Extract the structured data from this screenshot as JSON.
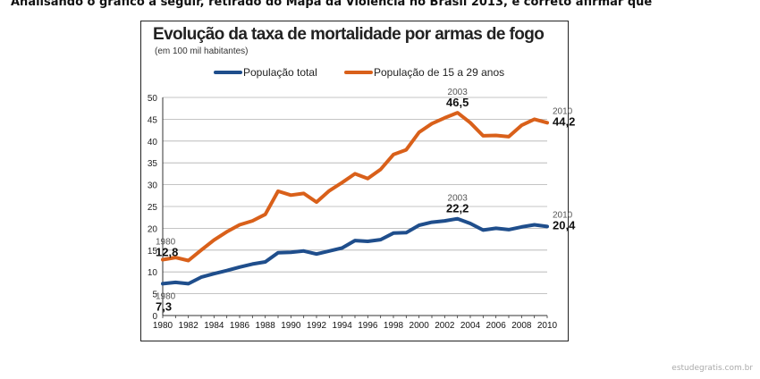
{
  "question": {
    "text": "Analisando o gráfico a seguir, retirado do Mapa da Violência no Brasil 2013, é correto afirmar que"
  },
  "watermark": "estudegratis.com.br",
  "colors": {
    "series_total": "#1f4e8c",
    "series_young": "#d9601a",
    "axis": "#333333",
    "grid": "#b0b0b0"
  },
  "chart_data": {
    "type": "line",
    "title": "Evolução da taxa de mortalidade por armas de fogo",
    "subtitle": "(em 100 mil habitantes)",
    "xlabel": "",
    "ylabel": "",
    "xlim": [
      1980,
      2010
    ],
    "ylim": [
      0,
      50
    ],
    "yticks": [
      0,
      5,
      10,
      15,
      20,
      25,
      30,
      35,
      40,
      45,
      50
    ],
    "xticks": [
      1980,
      1982,
      1984,
      1986,
      1988,
      1990,
      1992,
      1994,
      1996,
      1998,
      2000,
      2002,
      2004,
      2006,
      2008,
      2010
    ],
    "grid": "horizontal",
    "legend_position": "top",
    "x": [
      1980,
      1981,
      1982,
      1983,
      1984,
      1985,
      1986,
      1987,
      1988,
      1989,
      1990,
      1991,
      1992,
      1993,
      1994,
      1995,
      1996,
      1997,
      1998,
      1999,
      2000,
      2001,
      2002,
      2003,
      2004,
      2005,
      2006,
      2007,
      2008,
      2009,
      2010
    ],
    "series": [
      {
        "name": "População total",
        "color": "#1f4e8c",
        "values": [
          7.3,
          7.6,
          7.3,
          8.8,
          9.6,
          10.3,
          11.1,
          11.8,
          12.3,
          14.4,
          14.5,
          14.8,
          14.1,
          14.8,
          15.5,
          17.2,
          17.0,
          17.4,
          18.9,
          19.0,
          20.7,
          21.4,
          21.7,
          22.2,
          21.1,
          19.6,
          20.0,
          19.7,
          20.3,
          20.8,
          20.4
        ],
        "annotations": [
          {
            "x": 1980,
            "year": "1980",
            "value": "7,3"
          },
          {
            "x": 2003,
            "year": "2003",
            "value": "22,2"
          },
          {
            "x": 2010,
            "year": "2010",
            "value": "20,4"
          }
        ]
      },
      {
        "name": "População de 15 a 29 anos",
        "color": "#d9601a",
        "values": [
          12.8,
          13.3,
          12.6,
          15.0,
          17.3,
          19.2,
          20.8,
          21.7,
          23.2,
          28.5,
          27.6,
          28.0,
          26.0,
          28.6,
          30.5,
          32.5,
          31.4,
          33.5,
          36.9,
          38.0,
          42.0,
          44.0,
          45.3,
          46.5,
          44.2,
          41.2,
          41.3,
          41.0,
          43.6,
          45.0,
          44.2
        ],
        "annotations": [
          {
            "x": 1980,
            "year": "1980",
            "value": "12,8"
          },
          {
            "x": 2003,
            "year": "2003",
            "value": "46,5"
          },
          {
            "x": 2010,
            "year": "2010",
            "value": "44,2"
          }
        ]
      }
    ]
  }
}
